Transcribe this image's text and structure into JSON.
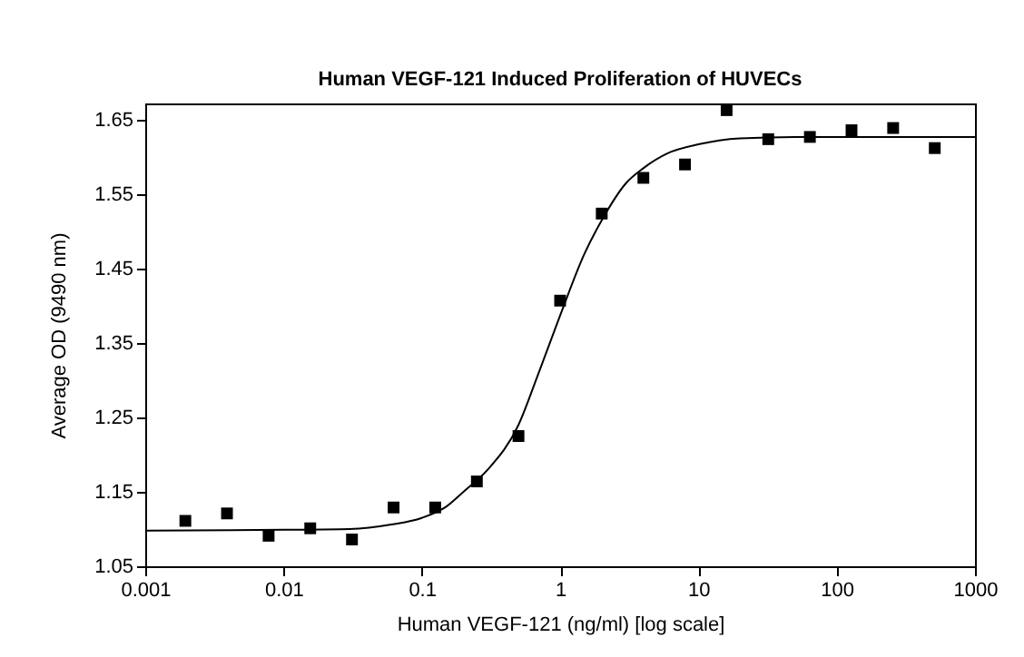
{
  "chart_data": {
    "type": "scatter",
    "title": "Human VEGF-121 Induced Proliferation of HUVECs",
    "xlabel": "Human VEGF-121 (ng/ml) [log scale]",
    "ylabel": "Average OD (9490 nm)",
    "log": "x",
    "xlim": [
      0.001,
      1000
    ],
    "xticks": [
      0.001,
      0.01,
      0.1,
      1,
      10,
      100,
      1000
    ],
    "ylim": [
      1.05,
      1.672
    ],
    "yticks": [
      1.05,
      1.15,
      1.25,
      1.35,
      1.45,
      1.55,
      1.65
    ],
    "grid": false,
    "series": [
      {
        "marker": "square",
        "color": "#000000",
        "x": [
          0.00195,
          0.0039,
          0.0078,
          0.0156,
          0.03125,
          0.0625,
          0.125,
          0.25,
          0.5,
          1,
          2,
          4,
          8,
          16,
          32,
          64,
          128,
          256,
          512
        ],
        "values": [
          1.111,
          1.121,
          1.091,
          1.101,
          1.086,
          1.129,
          1.129,
          1.164,
          1.225,
          1.407,
          1.524,
          1.572,
          1.59,
          1.663,
          1.624,
          1.627,
          1.636,
          1.639,
          1.612
        ]
      },
      {
        "type": "line",
        "color": "#000000",
        "line_style": "solid",
        "x": [
          0.001,
          0.01,
          0.03,
          0.06,
          0.1,
          0.15,
          0.2,
          0.3,
          0.5,
          0.7,
          1,
          1.5,
          2,
          3,
          4,
          6,
          10,
          20,
          50,
          1000
        ],
        "values": [
          1.098,
          1.099,
          1.1,
          1.106,
          1.115,
          1.13,
          1.15,
          1.18,
          1.24,
          1.31,
          1.387,
          1.47,
          1.515,
          1.565,
          1.585,
          1.605,
          1.617,
          1.625,
          1.627,
          1.627
        ]
      }
    ]
  }
}
